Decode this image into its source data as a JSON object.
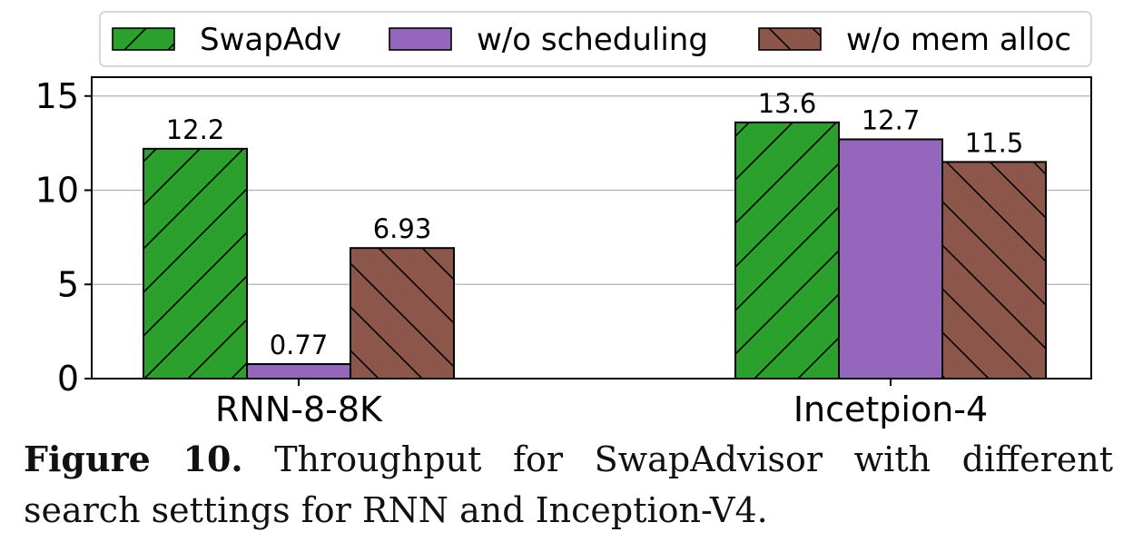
{
  "chart_data": {
    "type": "bar",
    "categories": [
      "RNN-8-8K",
      "Incetpion-4"
    ],
    "series": [
      {
        "name": "SwapAdv",
        "values": [
          12.2,
          13.6
        ],
        "value_labels": [
          "12.2",
          "13.6"
        ],
        "color": "#2ca02c",
        "hatch": "diagonal-up"
      },
      {
        "name": "w/o scheduling",
        "values": [
          0.77,
          12.7
        ],
        "value_labels": [
          "0.77",
          "12.7"
        ],
        "color": "#9467bd",
        "hatch": "none"
      },
      {
        "name": "w/o mem alloc",
        "values": [
          6.93,
          11.5
        ],
        "value_labels": [
          "6.93",
          "11.5"
        ],
        "color": "#8c564b",
        "hatch": "diagonal-down"
      }
    ],
    "ylim": [
      0,
      16
    ],
    "yticks": [
      0,
      5,
      10,
      15
    ],
    "ytick_labels": [
      "0",
      "5",
      "10",
      "15"
    ],
    "grid": "horizontal",
    "legend_position": "top"
  },
  "caption": {
    "label": "Figure 10.",
    "text": "Throughput for SwapAdvisor with different search settings for RNN and Inception-V4."
  }
}
